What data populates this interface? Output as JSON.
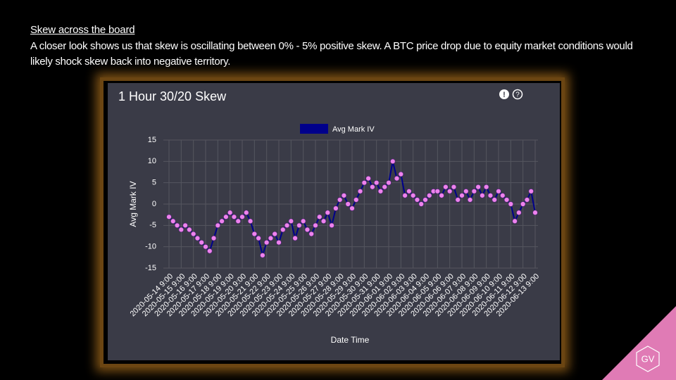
{
  "slide": {
    "heading": "Skew across the board",
    "body": "A closer look shows us that skew is oscillating between 0% - 5% positive skew. A BTC price drop due to equity market conditions would likely shock skew back into negative territory.",
    "logo": "GV"
  },
  "chart_data": {
    "type": "line",
    "title": "1 Hour 30/20 Skew",
    "x_label": "Date Time",
    "y_label": "Avg Mark IV",
    "categories": [
      "2020-05-14 9:00",
      null,
      null,
      "2020-05-15 9:00",
      null,
      null,
      "2020-05-16 9:00",
      null,
      null,
      "2020-05-17 9:00",
      null,
      null,
      "2020-05-18 9:00",
      null,
      null,
      "2020-05-19 9:00",
      null,
      null,
      "2020-05-20 9:00",
      null,
      null,
      "2020-05-21 9:00",
      null,
      null,
      "2020-05-22 9:00",
      null,
      null,
      "2020-05-23 9:00",
      null,
      null,
      "2020-05-24 9:00",
      null,
      null,
      "2020-05-25 9:00",
      null,
      null,
      "2020-05-26 9:00",
      null,
      null,
      "2020-05-27 9:00",
      null,
      null,
      "2020-05-28 9:00",
      null,
      null,
      "2020-05-29 9:00",
      null,
      null,
      "2020-05-30 9:00",
      null,
      null,
      "2020-05-31 9:00",
      null,
      null,
      "2020-06-01 9:00",
      null,
      null,
      "2020-06-02 9:00",
      null,
      null,
      "2020-06-03 9:00",
      null,
      null,
      "2020-06-04 9:00",
      null,
      null,
      "2020-06-05 9:00",
      null,
      null,
      "2020-06-06 9:00",
      null,
      null,
      "2020-06-07 9:00",
      null,
      null,
      "2020-06-08 9:00",
      null,
      null,
      "2020-06-09 9:00",
      null,
      null,
      "2020-06-10 9:00",
      null,
      null,
      "2020-06-11 9:00",
      null,
      null,
      "2020-06-12 9:00",
      null,
      null,
      "2020-06-13 9:00"
    ],
    "series": [
      {
        "name": "Avg Mark IV",
        "color": "#00008b",
        "marker_color": "#ee82ee",
        "values": [
          -3,
          -4,
          -5,
          -6,
          -5,
          -6,
          -7,
          -8,
          -9,
          -10,
          -11,
          -8,
          -5,
          -4,
          -3,
          -2,
          -3,
          -4,
          -3,
          -2,
          -4,
          -7,
          -8,
          -12,
          -9,
          -8,
          -7,
          -9,
          -6,
          -5,
          -4,
          -8,
          -5,
          -4,
          -6,
          -7,
          -5,
          -3,
          -4,
          -2,
          -5,
          -1,
          1,
          2,
          0,
          -1,
          1,
          3,
          5,
          6,
          4,
          5,
          3,
          4,
          5,
          10,
          6,
          7,
          2,
          3,
          2,
          1,
          0,
          1,
          2,
          3,
          3,
          2,
          4,
          3,
          4,
          1,
          2,
          3,
          1,
          3,
          4,
          2,
          4,
          2,
          1,
          3,
          2,
          1,
          0,
          -4,
          -2,
          0,
          1,
          3,
          -2
        ]
      }
    ],
    "ylim": [
      -15,
      15
    ],
    "yticks": [
      -15,
      -10,
      -5,
      0,
      5,
      10,
      15
    ],
    "grid": true
  }
}
